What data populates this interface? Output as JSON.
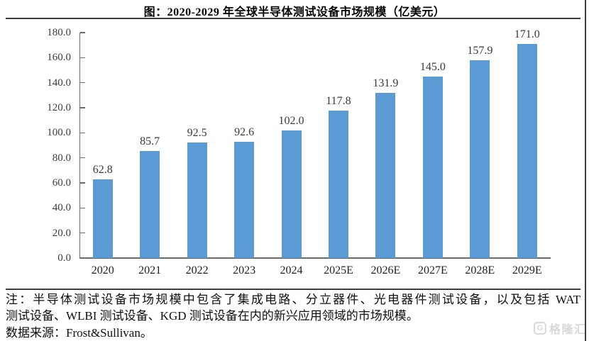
{
  "page": {
    "title": "图：2020-2029 年全球半导体测试设备市场规模（亿美元）",
    "note": {
      "line1": "注：半导体测试设备市场规模中包含了集成电路、分立器件、光电器件测试设备，以及包括 WAT",
      "line2": "测试设备、WLBI 测试设备、KGD 测试设备在内的新兴应用领域的市场规模。",
      "source": "数据来源：Frost&Sullivan。"
    },
    "watermark": {
      "icon": "G",
      "text": "格隆汇",
      "color": "#d9d9d9"
    }
  },
  "chart_data": {
    "type": "bar",
    "title": "图：2020-2029 年全球半导体测试设备市场规模（亿美元）",
    "unit": "亿美元",
    "categories": [
      "2020",
      "2021",
      "2022",
      "2023",
      "2024",
      "2025E",
      "2026E",
      "2027E",
      "2028E",
      "2029E"
    ],
    "values": [
      62.8,
      85.7,
      92.5,
      92.6,
      102.0,
      117.8,
      131.9,
      145.0,
      157.9,
      171.0
    ],
    "value_labels": [
      "62.8",
      "85.7",
      "92.5",
      "92.6",
      "102.0",
      "117.8",
      "131.9",
      "145.0",
      "157.9",
      "171.0"
    ],
    "ylim": [
      0,
      180
    ],
    "ytick_step": 20,
    "ytick_labels": [
      "0.0",
      "20.0",
      "40.0",
      "60.0",
      "80.0",
      "100.0",
      "120.0",
      "140.0",
      "160.0",
      "180.0"
    ],
    "bar_color": "#5B9BD5",
    "axis_color": "#6b6b6b",
    "grid": false,
    "legend": false,
    "xlabel": "",
    "ylabel": ""
  }
}
